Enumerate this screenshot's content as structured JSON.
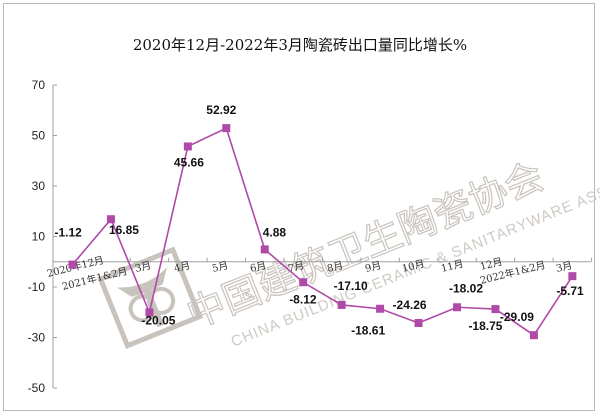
{
  "chart_data": {
    "type": "line",
    "title": "2020年12月-2022年3月陶瓷砖出口量同比增长%",
    "xlabel": "",
    "ylabel": "",
    "ylim": [
      -50,
      70
    ],
    "yticks": [
      70,
      50,
      30,
      10,
      -10,
      -30,
      -50
    ],
    "grid": false,
    "legend": null,
    "categories": [
      "2020年12月",
      "2021年1&2月",
      "3月",
      "4月",
      "5月",
      "6月",
      "7月",
      "8月",
      "9月",
      "10月",
      "11月",
      "12月",
      "2022年1&2月",
      "3月"
    ],
    "series": [
      {
        "name": "陶瓷砖出口量同比增长%",
        "color": "#b04aa8",
        "marker": "square",
        "values": [
          -1.12,
          16.85,
          -20.05,
          45.66,
          52.92,
          4.88,
          -8.12,
          -17.1,
          -18.61,
          -24.26,
          -18.02,
          -18.75,
          -29.09,
          -5.71
        ],
        "labels": [
          "-1.12",
          "16.85",
          "-20.05",
          "45.66",
          "52.92",
          "4.88",
          "-8.12",
          "-17.10",
          "-18.61",
          "-24.26",
          "-18.02",
          "-18.75",
          "-29.09",
          "-5.71"
        ]
      }
    ],
    "watermark": {
      "cn": "中国建筑卫生陶瓷协会",
      "en": "CHINA BUILDING CERAMIC & SANITARYWARE ASSOCIATION"
    }
  },
  "colors": {
    "line": "#b04aa8",
    "marker": "#b04aa8",
    "axis": "#a0a0a0",
    "frame": "#b8b8b8",
    "watermark": "#c9c3bd"
  }
}
